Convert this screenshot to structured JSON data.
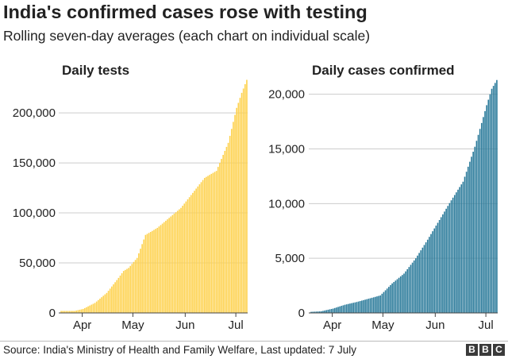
{
  "title": "India's confirmed cases rose with testing",
  "subtitle": "Rolling seven-day averages (each chart on individual scale)",
  "source": "Source: India's Ministry of Health and Family Welfare, Last updated: 7 July",
  "logo": [
    "B",
    "B",
    "C"
  ],
  "colors": {
    "tests": "#fed24f",
    "cases": "#2a7a9a",
    "grid": "#cccccc",
    "axis": "#444444"
  },
  "chart_data": [
    {
      "type": "bar",
      "title": "Daily tests",
      "xlabel": "",
      "ylabel": "",
      "ylim": [
        0,
        235000
      ],
      "yticks": [
        0,
        50000,
        100000,
        150000,
        200000
      ],
      "ytick_labels": [
        "0",
        "50,000",
        "100,000",
        "150,000",
        "200,000"
      ],
      "xtick_labels": [
        "Apr",
        "May",
        "Jun",
        "Jul"
      ],
      "x_start": "2020-03-19",
      "x_end": "2020-07-07",
      "grid": true,
      "series": [
        {
          "color": "#fed24f",
          "dates": [
            "2020-03-19",
            "2020-03-27",
            "2020-04-01",
            "2020-04-08",
            "2020-04-15",
            "2020-04-22",
            "2020-04-25",
            "2020-04-28",
            "2020-05-03",
            "2020-05-08",
            "2020-05-15",
            "2020-05-22",
            "2020-05-29",
            "2020-06-05",
            "2020-06-12",
            "2020-06-19",
            "2020-06-26",
            "2020-07-01",
            "2020-07-04",
            "2020-07-07"
          ],
          "values": [
            2000,
            2000,
            4000,
            10000,
            20000,
            35000,
            42000,
            45000,
            55000,
            78000,
            85000,
            95000,
            105000,
            120000,
            135000,
            142000,
            170000,
            205000,
            220000,
            233000
          ]
        }
      ]
    },
    {
      "type": "bar",
      "title": "Daily cases confirmed",
      "xlabel": "",
      "ylabel": "",
      "ylim": [
        0,
        21500
      ],
      "yticks": [
        0,
        5000,
        10000,
        15000,
        20000
      ],
      "ytick_labels": [
        "0",
        "5,000",
        "10,000",
        "15,000",
        "20,000"
      ],
      "xtick_labels": [
        "Apr",
        "May",
        "Jun",
        "Jul"
      ],
      "x_start": "2020-03-19",
      "x_end": "2020-07-07",
      "grid": true,
      "series": [
        {
          "color": "#2a7a9a",
          "dates": [
            "2020-03-19",
            "2020-03-25",
            "2020-04-01",
            "2020-04-08",
            "2020-04-15",
            "2020-04-22",
            "2020-04-29",
            "2020-05-06",
            "2020-05-13",
            "2020-05-20",
            "2020-05-27",
            "2020-06-03",
            "2020-06-10",
            "2020-06-17",
            "2020-06-24",
            "2020-07-01",
            "2020-07-04",
            "2020-07-07"
          ],
          "values": [
            100,
            150,
            400,
            750,
            1000,
            1300,
            1600,
            2700,
            3600,
            5000,
            6700,
            8500,
            10300,
            12000,
            15200,
            19000,
            20500,
            21300
          ]
        }
      ]
    }
  ]
}
